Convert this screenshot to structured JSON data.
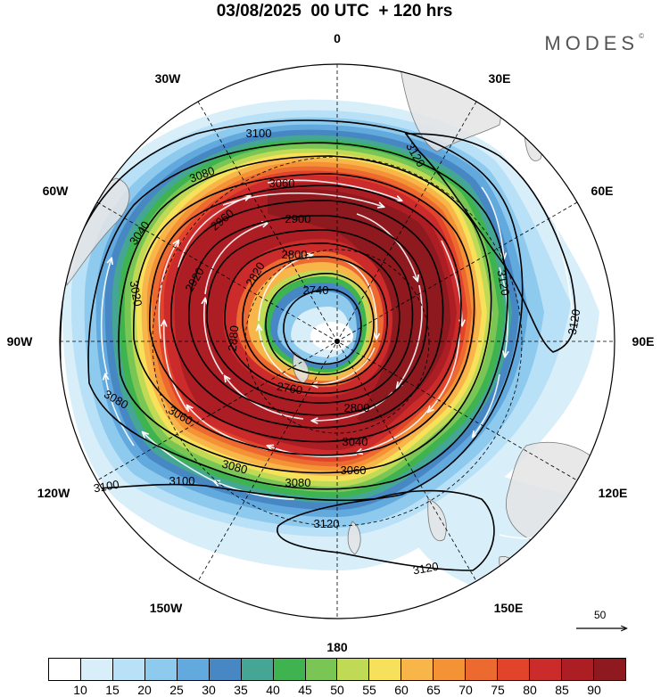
{
  "title": "03/08/2025  00 UTC  + 120 hrs",
  "brand": "MODES",
  "brand_mark": "©",
  "longitude_labels": {
    "n0": "0",
    "e30": "30E",
    "e60": "60E",
    "e90": "90E",
    "e120": "120E",
    "e150": "150E",
    "s180": "180",
    "w150": "150W",
    "w120": "120W",
    "w90": "90W",
    "w60": "60W",
    "w30": "30W"
  },
  "contour_labels": {
    "c3120_a": "3120",
    "c3120_b": "3120",
    "c3120_c": "3120",
    "c3120_d": "3120",
    "c3120_e": "3120",
    "c3100_a": "3100",
    "c3100_b": "3100",
    "c3100_c": "3100",
    "c3080_a": "3080",
    "c3080_b": "3080",
    "c3080_c": "3080",
    "c3080_d": "3080",
    "c3060_a": "3060",
    "c3060_b": "3060",
    "c3060_c": "3060",
    "c3040_a": "3040",
    "c3040_b": "3040",
    "c3020": "3020",
    "c2960": "2960",
    "c2900": "2900",
    "c2920": "2920",
    "c2880": "2880",
    "c2820": "2820",
    "c2800_a": "2800",
    "c2800_b": "2800",
    "c2760": "2760",
    "c2740": "2740"
  },
  "vector_reference": {
    "label": "50"
  },
  "colorbar": {
    "colors": [
      "#ffffff",
      "#d8effa",
      "#b8e0f6",
      "#8ec9ee",
      "#62a9dd",
      "#4787c4",
      "#46a695",
      "#3fb350",
      "#7ac655",
      "#c0da55",
      "#f7e05a",
      "#f7b54a",
      "#f49236",
      "#ec6a30",
      "#e2432b",
      "#cc2b2b",
      "#ad1d24",
      "#8e1a1f"
    ],
    "ticks": [
      "10",
      "15",
      "20",
      "25",
      "30",
      "35",
      "40",
      "45",
      "50",
      "55",
      "60",
      "65",
      "70",
      "75",
      "80",
      "85",
      "90"
    ]
  }
}
